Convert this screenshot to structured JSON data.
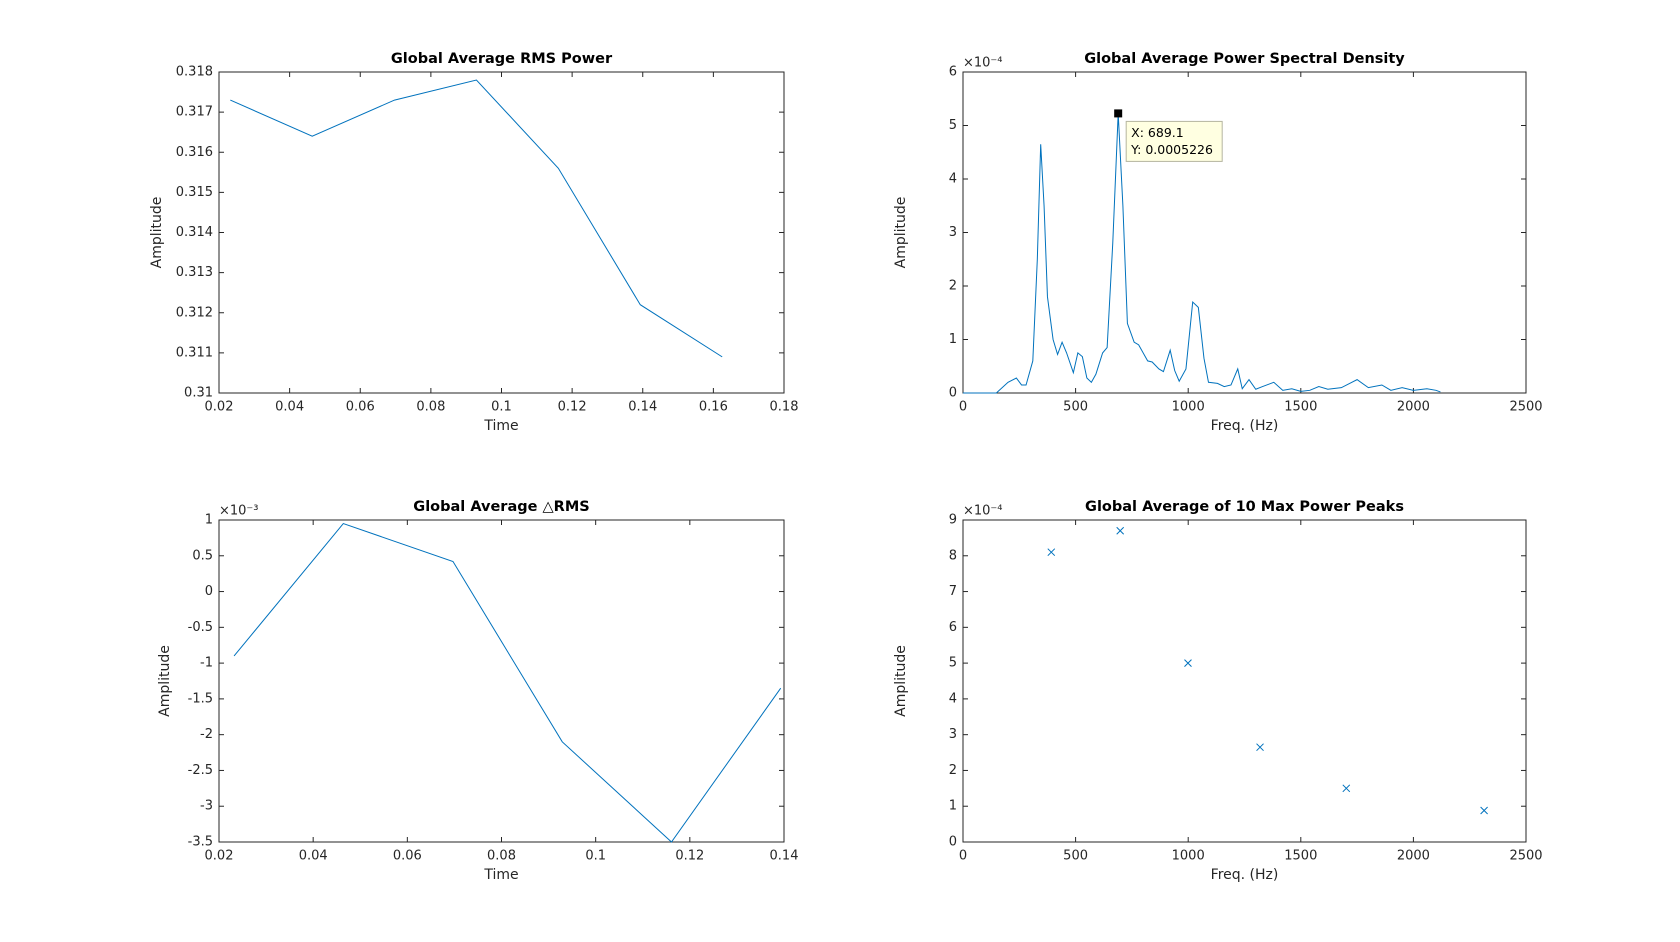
{
  "chart_data": [
    {
      "type": "line",
      "title": "Global Average RMS Power",
      "xlabel": "Time",
      "ylabel": "Amplitude",
      "color": "#0072bd",
      "x": [
        0.0232,
        0.0464,
        0.0697,
        0.0929,
        0.1161,
        0.1393,
        0.1625
      ],
      "values": [
        0.3173,
        0.3164,
        0.3173,
        0.3178,
        0.3156,
        0.3122,
        0.3109
      ],
      "xlim": [
        0.02,
        0.18
      ],
      "xticks": [
        0.02,
        0.04,
        0.06,
        0.08,
        0.1,
        0.12,
        0.14,
        0.16,
        0.18
      ],
      "ylim": [
        0.31,
        0.318
      ],
      "yticks": [
        0.31,
        0.311,
        0.312,
        0.313,
        0.314,
        0.315,
        0.316,
        0.317,
        0.318
      ]
    },
    {
      "type": "line",
      "title": "Global Average Power Spectral Density",
      "xlabel": "Freq. (Hz)",
      "ylabel": "Amplitude",
      "color": "#0072bd",
      "y_multiplier": "×10⁻⁴",
      "x": [
        0,
        148,
        200,
        237,
        260,
        280,
        310,
        330,
        345,
        360,
        375,
        400,
        420,
        440,
        460,
        490,
        510,
        530,
        550,
        570,
        590,
        620,
        640,
        665,
        689.1,
        710,
        730,
        760,
        780,
        820,
        840,
        870,
        890,
        920,
        940,
        960,
        990,
        1020,
        1045,
        1070,
        1090,
        1130,
        1160,
        1190,
        1220,
        1240,
        1270,
        1300,
        1330,
        1380,
        1420,
        1460,
        1500,
        1540,
        1580,
        1620,
        1680,
        1750,
        1800,
        1860,
        1900,
        1950,
        2000,
        2060,
        2100,
        2120
      ],
      "values": [
        0,
        0,
        2e-05,
        2.8e-05,
        1.5e-05,
        1.5e-05,
        6e-05,
        0.00025,
        0.000465,
        0.00035,
        0.00018,
        0.0001,
        7.2e-05,
        9.5e-05,
        7.5e-05,
        3.8e-05,
        7.5e-05,
        6.8e-05,
        2.8e-05,
        2e-05,
        3.5e-05,
        7.5e-05,
        8.5e-05,
        0.00028,
        0.0005226,
        0.00035,
        0.00013,
        9.5e-05,
        9e-05,
        6e-05,
        5.8e-05,
        4.5e-05,
        4e-05,
        8e-05,
        4.2e-05,
        2.2e-05,
        4.5e-05,
        0.00017,
        0.00016,
        6.5e-05,
        2e-05,
        1.8e-05,
        1.2e-05,
        1.5e-05,
        4.5e-05,
        8e-06,
        2.5e-05,
        7e-06,
        1.2e-05,
        2e-05,
        5e-06,
        8e-06,
        3e-06,
        5e-06,
        1.2e-05,
        7e-06,
        1e-05,
        2.5e-05,
        1e-05,
        1.5e-05,
        5e-06,
        1e-05,
        5e-06,
        8e-06,
        5e-06,
        2e-06
      ],
      "xlim": [
        0,
        2500
      ],
      "xticks": [
        0,
        500,
        1000,
        1500,
        2000,
        2500
      ],
      "ylim": [
        0,
        0.0006
      ],
      "yticks": [
        0,
        {
          "value": 0.0001,
          "label": "1"
        },
        {
          "value": 0.0002,
          "label": "2"
        },
        {
          "value": 0.0003,
          "label": "3"
        },
        {
          "value": 0.0004,
          "label": "4"
        },
        {
          "value": 0.0005,
          "label": "5"
        },
        {
          "value": 0.0006,
          "label": "6"
        }
      ],
      "datatip": {
        "x": 689.1,
        "y": 0.0005226,
        "labels": [
          "X: 689.1",
          "Y: 0.0005226"
        ]
      }
    },
    {
      "type": "line",
      "title": "Global Average △RMS",
      "xlabel": "Time",
      "ylabel": "Amplitude",
      "color": "#0072bd",
      "y_multiplier": "×10⁻³",
      "x": [
        0.0232,
        0.0464,
        0.0697,
        0.0929,
        0.1161,
        0.1393
      ],
      "values": [
        -0.0009,
        0.00095,
        0.00042,
        -0.0021,
        -0.0035,
        -0.00135
      ],
      "xlim": [
        0.02,
        0.14
      ],
      "xticks": [
        0.02,
        0.04,
        0.06,
        0.08,
        0.1,
        0.12,
        0.14
      ],
      "ylim": [
        -0.0035,
        0.001
      ],
      "yticks": [
        {
          "value": -0.0035,
          "label": "-3.5"
        },
        {
          "value": -0.003,
          "label": "-3"
        },
        {
          "value": -0.0025,
          "label": "-2.5"
        },
        {
          "value": -0.002,
          "label": "-2"
        },
        {
          "value": -0.0015,
          "label": "-1.5"
        },
        {
          "value": -0.001,
          "label": "-1"
        },
        {
          "value": -0.0005,
          "label": "-0.5"
        },
        0,
        {
          "value": 0.0005,
          "label": "0.5"
        },
        {
          "value": 0.001,
          "label": "1"
        }
      ]
    },
    {
      "type": "scatter",
      "title": "Global Average of 10 Max Power Peaks",
      "xlabel": "Freq. (Hz)",
      "ylabel": "Amplitude",
      "color": "#0072bd",
      "y_multiplier": "×10⁻⁴",
      "x": [
        392,
        698,
        999,
        1319,
        1702,
        2314
      ],
      "values": [
        0.00081,
        0.00087,
        0.0005,
        0.000265,
        0.00015,
        8.8e-05
      ],
      "xlim": [
        0,
        2500
      ],
      "xticks": [
        0,
        500,
        1000,
        1500,
        2000,
        2500
      ],
      "ylim": [
        0,
        0.0009
      ],
      "yticks": [
        0,
        {
          "value": 0.0001,
          "label": "1"
        },
        {
          "value": 0.0002,
          "label": "2"
        },
        {
          "value": 0.0003,
          "label": "3"
        },
        {
          "value": 0.0004,
          "label": "4"
        },
        {
          "value": 0.0005,
          "label": "5"
        },
        {
          "value": 0.0006,
          "label": "6"
        },
        {
          "value": 0.0007,
          "label": "7"
        },
        {
          "value": 0.0008,
          "label": "8"
        },
        {
          "value": 0.0009,
          "label": "9"
        }
      ]
    }
  ]
}
